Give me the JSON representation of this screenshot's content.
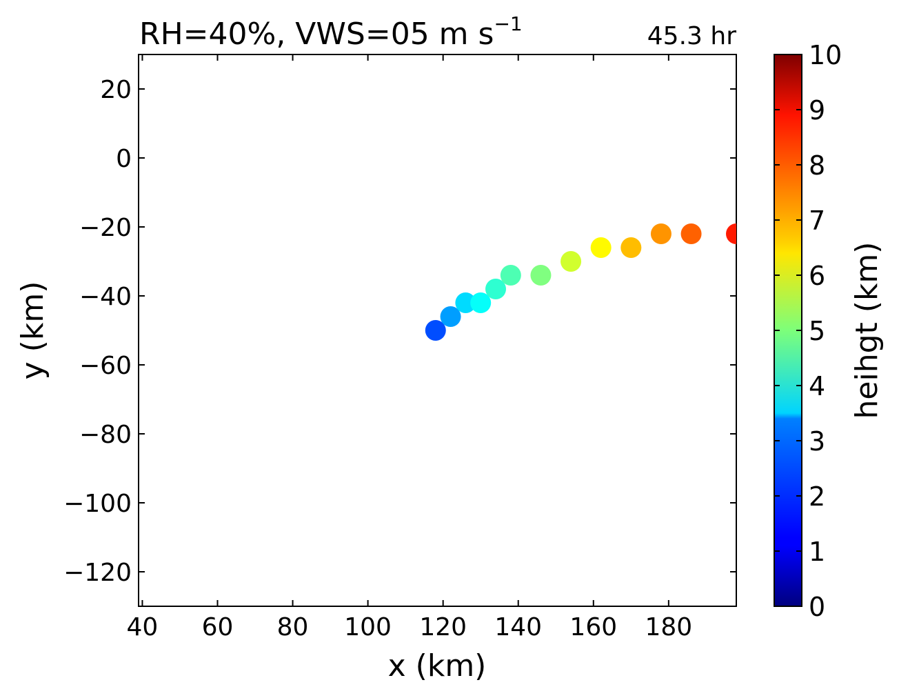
{
  "chart_data": {
    "type": "scatter",
    "title": "RH=40%, VWS=05 m s",
    "title_superscript": "−1",
    "time_label": "45.3 hr",
    "time_label_color": "#0000ff",
    "xlabel": "x (km)",
    "ylabel": "y (km)",
    "xlim": [
      39,
      198
    ],
    "ylim": [
      -130,
      30
    ],
    "xticks": [
      40,
      60,
      80,
      100,
      120,
      140,
      160,
      180
    ],
    "yticks": [
      20,
      0,
      -20,
      -40,
      -60,
      -80,
      -100,
      -120
    ],
    "xtick_labels": [
      "40",
      "60",
      "80",
      "100",
      "120",
      "140",
      "160",
      "180"
    ],
    "ytick_labels": [
      "20",
      "0",
      "−20",
      "−40",
      "−60",
      "−80",
      "−100",
      "−120"
    ],
    "colorbar": {
      "label": "heihgt (km)",
      "range": [
        0,
        10
      ],
      "ticks": [
        0,
        1,
        2,
        3,
        4,
        5,
        6,
        7,
        8,
        9,
        10
      ],
      "tick_labels": [
        "0",
        "1",
        "2",
        "3",
        "4",
        "5",
        "6",
        "7",
        "8",
        "9",
        "10"
      ],
      "colormap": "jet"
    },
    "points": [
      {
        "x": 118,
        "y": -50,
        "height": 2.0
      },
      {
        "x": 122,
        "y": -46,
        "height": 2.8
      },
      {
        "x": 126,
        "y": -42,
        "height": 3.4
      },
      {
        "x": 130,
        "y": -42,
        "height": 3.8
      },
      {
        "x": 134,
        "y": -38,
        "height": 4.2
      },
      {
        "x": 138,
        "y": -34,
        "height": 4.5
      },
      {
        "x": 146,
        "y": -34,
        "height": 5.0
      },
      {
        "x": 154,
        "y": -30,
        "height": 5.8
      },
      {
        "x": 162,
        "y": -26,
        "height": 6.3
      },
      {
        "x": 170,
        "y": -26,
        "height": 6.9
      },
      {
        "x": 178,
        "y": -22,
        "height": 7.3
      },
      {
        "x": 186,
        "y": -22,
        "height": 7.8
      },
      {
        "x": 198,
        "y": -22,
        "height": 8.5
      }
    ]
  }
}
